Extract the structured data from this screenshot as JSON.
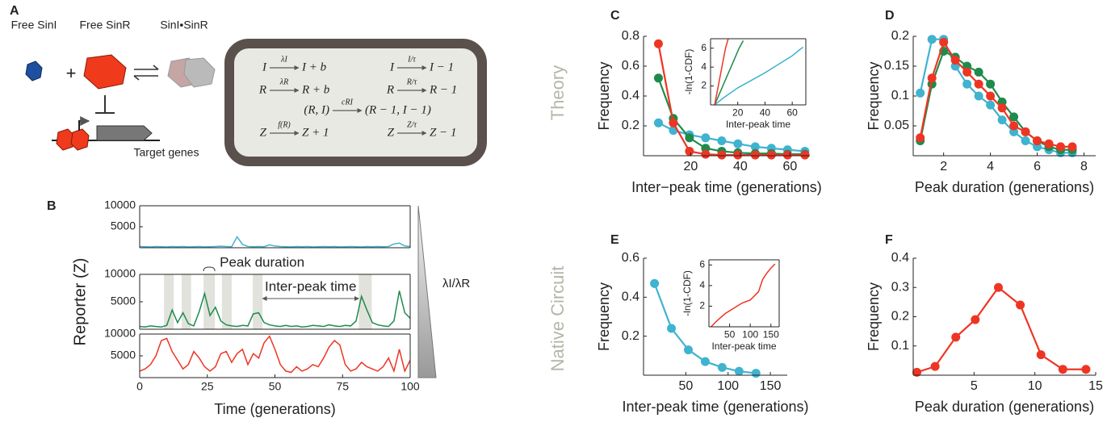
{
  "figure": {
    "panel_letters": [
      "A",
      "B",
      "C",
      "D",
      "E",
      "F"
    ],
    "row_labels": [
      "Theory",
      "Native Circuit"
    ],
    "panel_a": {
      "labels": [
        "Free SinI",
        "Free SinR",
        "SinI•SinR",
        "Target genes"
      ],
      "equations": [
        {
          "lhs": "I",
          "rate": "λI",
          "rhs": "I + b"
        },
        {
          "lhs": "I",
          "rate": "I/τ",
          "rhs": "I − 1"
        },
        {
          "lhs": "R",
          "rate": "λR",
          "rhs": "R + b"
        },
        {
          "lhs": "R",
          "rate": "R/τ",
          "rhs": "R − 1"
        },
        {
          "lhs": "(R, I)",
          "rate": "cRI",
          "rhs": "(R − 1, I − 1)"
        },
        {
          "lhs": "Z",
          "rate": "f(R)",
          "rhs": "Z + 1"
        },
        {
          "lhs": "Z",
          "rate": "Z/τ",
          "rhs": "Z − 1"
        }
      ]
    },
    "gradient_label": "λI/λR"
  },
  "chart_data": [
    {
      "type": "line",
      "x": [
        0,
        2,
        4,
        6,
        8,
        10,
        12,
        14,
        16,
        18,
        20,
        22,
        24,
        26,
        28,
        30,
        32,
        34,
        36,
        38,
        40,
        42,
        44,
        46,
        48,
        50,
        52,
        54,
        56,
        58,
        60,
        62,
        64,
        66,
        68,
        70,
        72,
        74,
        76,
        78,
        80,
        82,
        84,
        86,
        88,
        90,
        92,
        94,
        96,
        98,
        100
      ],
      "xlim": [
        0,
        100
      ],
      "ylim": [
        0,
        10000
      ],
      "yticks": [
        5000,
        10000
      ],
      "series": [
        {
          "color": "#3fb3cf",
          "values": [
            300,
            250,
            200,
            300,
            250,
            200,
            300,
            250,
            300,
            200,
            250,
            300,
            200,
            250,
            300,
            350,
            300,
            250,
            2600,
            800,
            300,
            250,
            300,
            250,
            700,
            400,
            300,
            250,
            200,
            300,
            250,
            300,
            200,
            250,
            300,
            250,
            300,
            200,
            250,
            300,
            250,
            200,
            300,
            250,
            300,
            250,
            300,
            900,
            1100,
            400,
            300
          ]
        }
      ]
    },
    {
      "type": "line",
      "x": [
        0,
        2,
        4,
        6,
        8,
        10,
        12,
        14,
        16,
        18,
        20,
        22,
        24,
        26,
        28,
        30,
        32,
        34,
        36,
        38,
        40,
        42,
        44,
        46,
        48,
        50,
        52,
        54,
        56,
        58,
        60,
        62,
        64,
        66,
        68,
        70,
        72,
        74,
        76,
        78,
        80,
        82,
        84,
        86,
        88,
        90,
        92,
        94,
        96,
        98,
        100
      ],
      "xlim": [
        0,
        100
      ],
      "ylim": [
        0,
        10000
      ],
      "yticks": [
        5000,
        10000
      ],
      "y_label": "Reporter (Z)",
      "shaded": [
        [
          9,
          12.6
        ],
        [
          15.5,
          19
        ],
        [
          23.6,
          27.8
        ],
        [
          30.4,
          34
        ],
        [
          41.8,
          45.4
        ],
        [
          81,
          85.8
        ]
      ],
      "annotations": [
        "Peak duration",
        "Inter-peak time"
      ],
      "series": [
        {
          "color": "#1e8b4c",
          "values": [
            500,
            400,
            600,
            500,
            400,
            700,
            3500,
            1200,
            3000,
            1000,
            600,
            3200,
            6500,
            2500,
            4000,
            1500,
            800,
            600,
            500,
            700,
            600,
            2800,
            3000,
            1200,
            800,
            600,
            500,
            700,
            500,
            600,
            400,
            500,
            700,
            600,
            500,
            800,
            600,
            500,
            700,
            600,
            1500,
            6000,
            3500,
            1200,
            800,
            600,
            500,
            1500,
            7000,
            3000,
            2000
          ]
        }
      ]
    },
    {
      "type": "line",
      "x": [
        0,
        2,
        4,
        6,
        8,
        10,
        12,
        14,
        16,
        18,
        20,
        22,
        24,
        26,
        28,
        30,
        32,
        34,
        36,
        38,
        40,
        42,
        44,
        46,
        48,
        50,
        52,
        54,
        56,
        58,
        60,
        62,
        64,
        66,
        68,
        70,
        72,
        74,
        76,
        78,
        80,
        82,
        84,
        86,
        88,
        90,
        92,
        94,
        96,
        98,
        100
      ],
      "xlim": [
        0,
        100
      ],
      "ylim": [
        0,
        10000
      ],
      "yticks": [
        5000,
        10000
      ],
      "xticks": [
        0,
        25,
        50,
        75,
        100
      ],
      "x_label": "Time (generations)",
      "series": [
        {
          "color": "#ee3524",
          "values": [
            1500,
            2000,
            3000,
            5000,
            8500,
            9000,
            6000,
            4000,
            2000,
            3000,
            6000,
            4500,
            2500,
            1500,
            2500,
            5500,
            6000,
            3500,
            5500,
            6500,
            3000,
            5500,
            4500,
            8000,
            9500,
            6500,
            3000,
            1500,
            1200,
            2500,
            1500,
            2000,
            3000,
            2500,
            4500,
            7000,
            8500,
            7500,
            3000,
            1500,
            2000,
            3500,
            2500,
            2000,
            1500,
            2500,
            4500,
            1500,
            6500,
            1500,
            4000
          ]
        }
      ]
    },
    {
      "type": "line",
      "markers": true,
      "x": [
        7,
        13,
        19.5,
        26,
        32.5,
        39,
        46,
        52.5,
        59,
        66
      ],
      "xlim": [
        1,
        68
      ],
      "ylim": [
        0,
        0.8
      ],
      "xticks": [
        20,
        40,
        60
      ],
      "yticks": [
        0.2,
        0.4,
        0.6,
        0.8
      ],
      "x_label": "Inter−peak time (generations)",
      "y_label": "Frequency",
      "series": [
        {
          "color": "#3fb3cf",
          "values": [
            0.22,
            0.17,
            0.14,
            0.12,
            0.1,
            0.08,
            0.06,
            0.05,
            0.04,
            0.03
          ]
        },
        {
          "color": "#1e8b4c",
          "values": [
            0.52,
            0.25,
            0.12,
            0.05,
            0.03,
            0.02,
            0.015,
            0.015,
            0.01,
            0.01
          ]
        },
        {
          "color": "#ee3524",
          "values": [
            0.75,
            0.22,
            0.03,
            0.01,
            0.005,
            0.005,
            0.005,
            0.005,
            0.005,
            0.005
          ]
        }
      ]
    },
    {
      "type": "line",
      "xlim": [
        0,
        70
      ],
      "ylim": [
        0,
        7
      ],
      "xticks": [
        20,
        40,
        60
      ],
      "yticks": [
        2,
        4,
        6
      ],
      "x_label": "Inter-peak time",
      "y_label": "-ln(1-CDF)",
      "series": [
        {
          "color": "#3fb3cf",
          "x": [
            3,
            10,
            20,
            30,
            40,
            50,
            60,
            66,
            68
          ],
          "values": [
            0,
            0.8,
            1.8,
            2.6,
            3.4,
            4.3,
            5.2,
            5.9,
            6.1
          ]
        },
        {
          "color": "#1e8b4c",
          "x": [
            3,
            6,
            9,
            12,
            15,
            18,
            21,
            24
          ],
          "values": [
            0,
            1,
            2,
            3,
            4,
            5,
            6,
            6.8
          ]
        },
        {
          "color": "#ee3524",
          "x": [
            3,
            5,
            7,
            9,
            11,
            13
          ],
          "values": [
            0,
            1.5,
            3,
            4.5,
            6,
            7
          ]
        }
      ]
    },
    {
      "type": "line",
      "markers": true,
      "x": [
        1,
        1.5,
        2,
        2.5,
        3,
        3.5,
        4,
        4.5,
        5,
        5.5,
        6,
        6.5,
        7,
        7.5
      ],
      "xlim": [
        0.7,
        8.5
      ],
      "ylim": [
        0,
        0.2
      ],
      "xticks": [
        2,
        4,
        6,
        8
      ],
      "yticks": [
        0.05,
        0.1,
        0.15,
        0.2
      ],
      "x_label": "Peak duration (generations)",
      "y_label": "Frequency",
      "series": [
        {
          "color": "#3fb3cf",
          "values": [
            0.105,
            0.195,
            0.195,
            0.15,
            0.12,
            0.1,
            0.085,
            0.06,
            0.04,
            0.025,
            0.015,
            0.01,
            0.005,
            0.005
          ]
        },
        {
          "color": "#1e8b4c",
          "values": [
            0.025,
            0.12,
            0.175,
            0.165,
            0.15,
            0.14,
            0.12,
            0.09,
            0.065,
            0.04,
            0.025,
            0.015,
            0.01,
            0.01
          ]
        },
        {
          "color": "#ee3524",
          "values": [
            0.03,
            0.13,
            0.19,
            0.16,
            0.14,
            0.12,
            0.1,
            0.08,
            0.05,
            0.04,
            0.025,
            0.02,
            0.015,
            0.015
          ]
        }
      ]
    },
    {
      "type": "line",
      "markers": true,
      "x": [
        13,
        33,
        53,
        73,
        93,
        113,
        133
      ],
      "xlim": [
        0,
        170
      ],
      "ylim": [
        0,
        0.6
      ],
      "xticks": [
        50,
        100,
        150
      ],
      "yticks": [
        0.2,
        0.4,
        0.6
      ],
      "x_label": "Inter-peak time (generations)",
      "y_label": "Frequency",
      "series": [
        {
          "color": "#3fb3cf",
          "values": [
            0.47,
            0.24,
            0.13,
            0.07,
            0.04,
            0.02,
            0.01
          ]
        }
      ]
    },
    {
      "type": "line",
      "xlim": [
        0,
        170
      ],
      "ylim": [
        0,
        6.5
      ],
      "xticks": [
        50,
        100,
        150
      ],
      "yticks": [
        2,
        4,
        6
      ],
      "x_label": "Inter-peak time",
      "y_label": "-ln(1-CDF)",
      "series": [
        {
          "color": "#ee3524",
          "x": [
            5,
            20,
            40,
            60,
            80,
            100,
            110,
            120,
            130,
            140,
            150,
            160
          ],
          "values": [
            0,
            0.6,
            1.3,
            1.8,
            2.3,
            2.6,
            3.0,
            3.4,
            4.6,
            5.2,
            5.7,
            6.1
          ]
        }
      ]
    },
    {
      "type": "line",
      "markers": true,
      "x": [
        0.3,
        1.8,
        3.5,
        5.1,
        7.0,
        8.8,
        10.5,
        12.3,
        14.2
      ],
      "xlim": [
        0,
        15
      ],
      "ylim": [
        0,
        0.4
      ],
      "xticks": [
        5,
        10,
        15
      ],
      "yticks": [
        0.1,
        0.2,
        0.3,
        0.4
      ],
      "x_label": "Peak duration (generations)",
      "y_label": "Frequency",
      "series": [
        {
          "color": "#ee3524",
          "values": [
            0.01,
            0.03,
            0.13,
            0.19,
            0.3,
            0.24,
            0.07,
            0.02,
            0.02
          ]
        }
      ]
    }
  ]
}
